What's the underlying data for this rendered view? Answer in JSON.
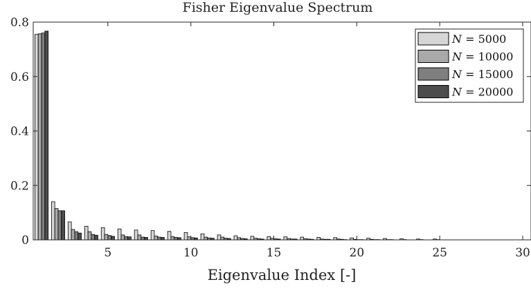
{
  "chart_data": {
    "type": "bar",
    "title": "Fisher Eigenvalue Spectrum",
    "xlabel": "Eigenvalue Index [-]",
    "ylabel": "",
    "xlim": [
      0.5,
      30.5
    ],
    "ylim": [
      0,
      0.8
    ],
    "xticks": [
      5,
      10,
      15,
      20,
      25,
      30
    ],
    "yticks": [
      0,
      0.2,
      0.4,
      0.6,
      0.8
    ],
    "xtick_labels": [
      "5",
      "10",
      "15",
      "20",
      "25",
      "30"
    ],
    "ytick_labels": [
      "0",
      "0.2",
      "0.4",
      "0.6",
      "0.8"
    ],
    "grid": false,
    "legend_position": "top-right",
    "categories": [
      1,
      2,
      3,
      4,
      5,
      6,
      7,
      8,
      9,
      10,
      11,
      12,
      13,
      14,
      15,
      16,
      17,
      18,
      19,
      20,
      21,
      22,
      23,
      24,
      25
    ],
    "series": [
      {
        "name": "N = 5000",
        "legend_var": "N",
        "legend_value": "5000",
        "color": "#d6d6d6",
        "values": [
          0.755,
          0.14,
          0.066,
          0.05,
          0.045,
          0.04,
          0.036,
          0.034,
          0.031,
          0.027,
          0.022,
          0.018,
          0.015,
          0.013,
          0.012,
          0.011,
          0.01,
          0.009,
          0.008,
          0.007,
          0.006,
          0.005,
          0.004,
          0.003,
          0.003
        ]
      },
      {
        "name": "N = 10000",
        "legend_var": "N",
        "legend_value": "10000",
        "color": "#a9a9a9",
        "values": [
          0.757,
          0.115,
          0.038,
          0.03,
          0.02,
          0.018,
          0.018,
          0.014,
          0.012,
          0.011,
          0.01,
          0.01,
          0.008,
          0.006,
          0.006,
          0.005,
          0.004,
          0.003,
          0.003,
          0.002,
          0.002,
          0.001,
          0.001,
          0.001,
          0.001
        ]
      },
      {
        "name": "N = 15000",
        "legend_var": "N",
        "legend_value": "15000",
        "color": "#7f7f7f",
        "values": [
          0.76,
          0.107,
          0.03,
          0.02,
          0.016,
          0.012,
          0.01,
          0.01,
          0.009,
          0.008,
          0.007,
          0.006,
          0.005,
          0.004,
          0.004,
          0.003,
          0.003,
          0.002,
          0.002,
          0.001,
          0.001,
          0.001,
          0.0,
          0.0,
          0.0
        ]
      },
      {
        "name": "N = 20000",
        "legend_var": "N",
        "legend_value": "20000",
        "color": "#4d4d4d",
        "values": [
          0.767,
          0.107,
          0.025,
          0.017,
          0.013,
          0.011,
          0.009,
          0.009,
          0.008,
          0.007,
          0.006,
          0.005,
          0.004,
          0.003,
          0.003,
          0.003,
          0.002,
          0.002,
          0.001,
          0.001,
          0.001,
          0.0,
          0.0,
          0.0,
          0.0
        ]
      }
    ]
  }
}
